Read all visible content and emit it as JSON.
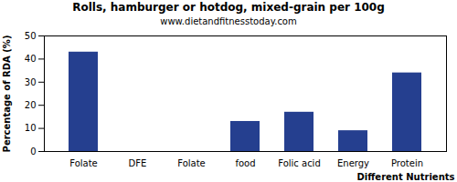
{
  "chart_data": {
    "type": "bar",
    "title": "Rolls, hamburger or hotdog, mixed-grain per 100g",
    "subtitle": "www.dietandfitnesstoday.com",
    "x_label": "Different Nutrients",
    "y_label": "Percentage of RDA (%)",
    "categories": [
      "Folate",
      "DFE",
      "Folate",
      "food",
      "Folic acid",
      "Energy",
      "Protein"
    ],
    "values": [
      43,
      0,
      0,
      13,
      17,
      9,
      34
    ],
    "color": "#253f8f",
    "ylim": [
      0,
      50
    ],
    "yticks": [
      0,
      10,
      20,
      30,
      40,
      50
    ],
    "grid": false
  }
}
